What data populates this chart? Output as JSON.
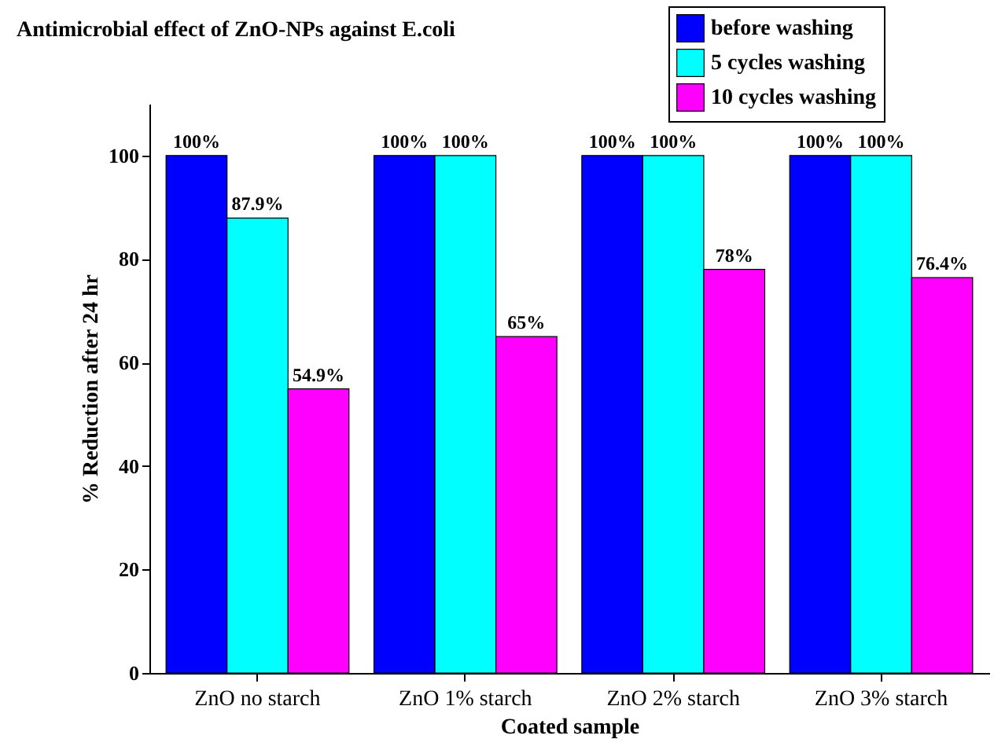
{
  "chart_data": {
    "type": "bar",
    "title": "Antimicrobial effect of ZnO-NPs against E.coli",
    "xlabel": "Coated sample",
    "ylabel": "% Reduction after 24 hr",
    "categories": [
      "ZnO no starch",
      "ZnO 1% starch",
      "ZnO 2% starch",
      "ZnO 3% starch"
    ],
    "series": [
      {
        "name": "before washing",
        "color": "#0000ff",
        "values": [
          100,
          100,
          100,
          100
        ],
        "value_labels": [
          "100%",
          "100%",
          "100%",
          "100%"
        ]
      },
      {
        "name": "5 cycles washing",
        "color": "#00ffff",
        "values": [
          87.9,
          100,
          100,
          100
        ],
        "value_labels": [
          "87.9%",
          "100%",
          "100%",
          "100%"
        ]
      },
      {
        "name": "10 cycles washing",
        "color": "#ff00ff",
        "values": [
          54.9,
          65,
          78,
          76.4
        ],
        "value_labels": [
          "54.9%",
          "65%",
          "78%",
          "76.4%"
        ]
      }
    ],
    "ylim": [
      0,
      110
    ],
    "yticks": [
      0,
      20,
      40,
      60,
      80,
      100
    ],
    "grid": false,
    "legend": "top right"
  }
}
